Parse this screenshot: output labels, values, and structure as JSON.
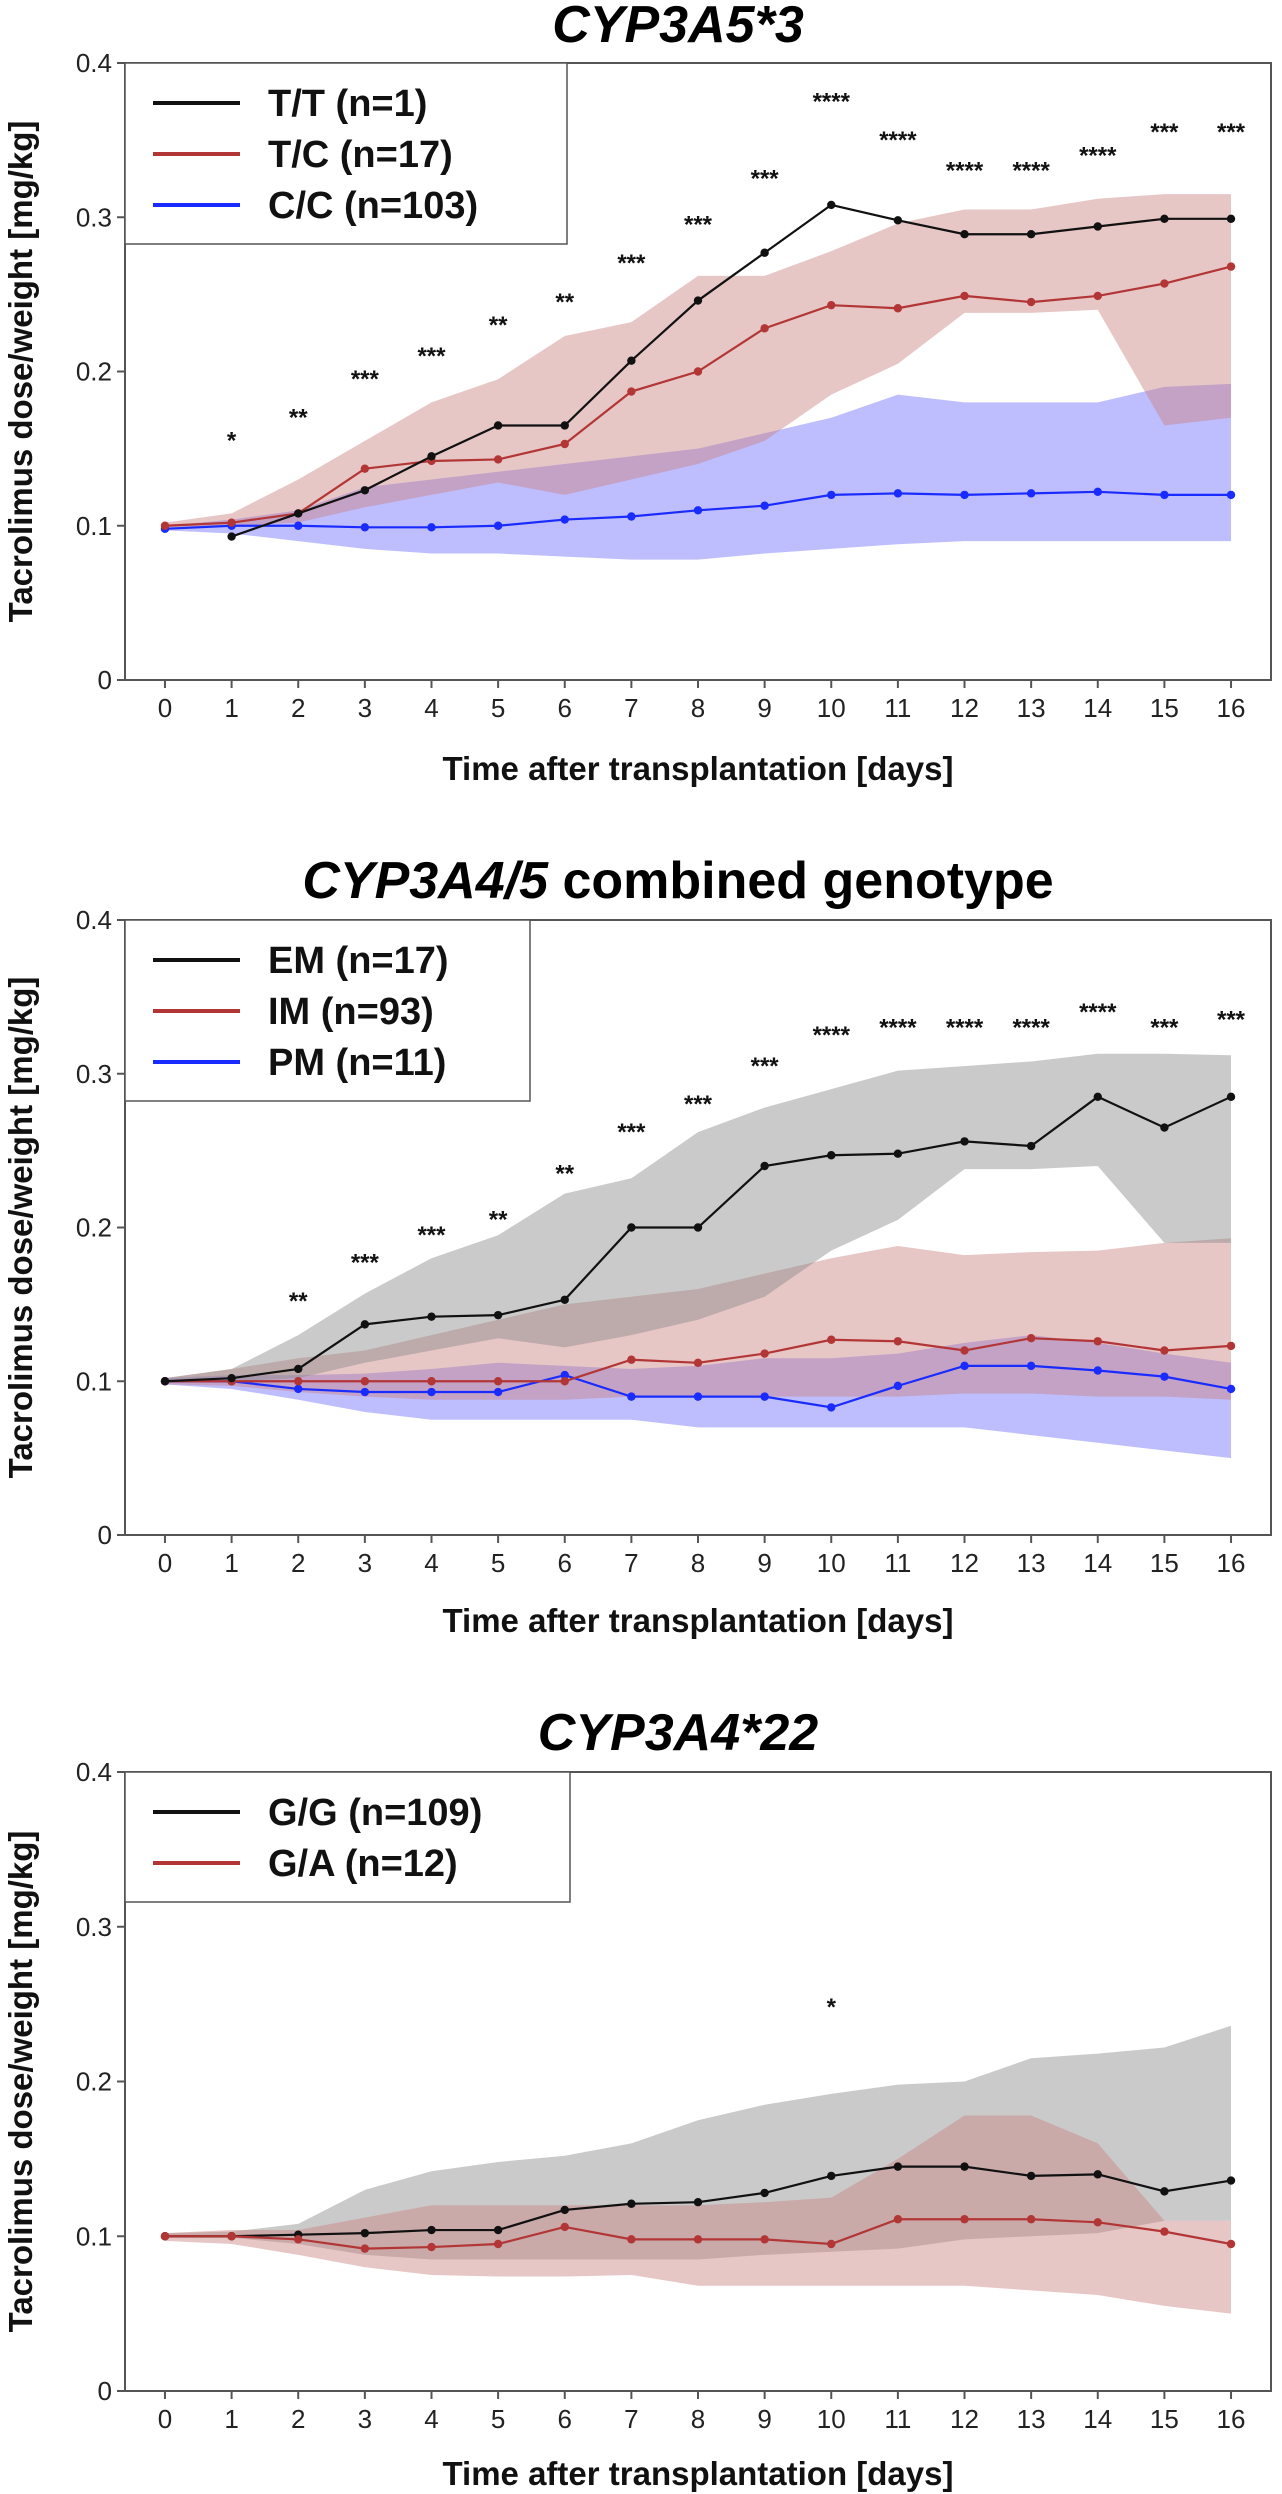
{
  "figure": {
    "colors": {
      "black": "#111111",
      "red": "#b23636",
      "blue": "#1a2bff",
      "black_band": "#8a8a8a",
      "red_band": "#c98080",
      "blue_band": "#6f6fff"
    }
  },
  "chart_data": [
    {
      "type": "line",
      "title_italic": "CYP3A5*3",
      "title_rest": "",
      "xlabel": "Time after transplantation [days]",
      "ylabel": "Tacrolimus dose/weight [mg/kg]",
      "x": [
        0,
        1,
        2,
        3,
        4,
        5,
        6,
        7,
        8,
        9,
        10,
        11,
        12,
        13,
        14,
        15,
        16
      ],
      "xlim": [
        -0.6,
        16.6
      ],
      "ylim": [
        0,
        0.4
      ],
      "yticks": [
        0,
        0.1,
        0.2,
        0.3,
        0.4
      ],
      "ytick_labels": [
        "0",
        "0.1",
        "0.2",
        "0.3",
        "0.4"
      ],
      "series": [
        {
          "name": "C/C",
          "legend": "C/C (n=103)",
          "color": "blue",
          "values": [
            0.098,
            0.1,
            0.1,
            0.099,
            0.099,
            0.1,
            0.104,
            0.106,
            0.11,
            0.113,
            0.12,
            0.121,
            0.12,
            0.121,
            0.122,
            0.12,
            0.12
          ],
          "band_low": [
            0.097,
            0.095,
            0.09,
            0.085,
            0.082,
            0.082,
            0.08,
            0.078,
            0.078,
            0.082,
            0.085,
            0.088,
            0.09,
            0.09,
            0.09,
            0.09,
            0.09
          ],
          "band_high": [
            0.1,
            0.104,
            0.11,
            0.125,
            0.13,
            0.135,
            0.14,
            0.145,
            0.15,
            0.16,
            0.17,
            0.185,
            0.18,
            0.18,
            0.18,
            0.19,
            0.192
          ]
        },
        {
          "name": "T/C",
          "legend": "T/C (n=17)",
          "color": "red",
          "values": [
            0.1,
            0.102,
            0.108,
            0.137,
            0.142,
            0.143,
            0.153,
            0.187,
            0.2,
            0.228,
            0.243,
            0.241,
            0.249,
            0.245,
            0.249,
            0.257,
            0.268
          ],
          "band_low": [
            0.099,
            0.1,
            0.102,
            0.112,
            0.12,
            0.128,
            0.12,
            0.13,
            0.14,
            0.155,
            0.185,
            0.205,
            0.238,
            0.238,
            0.24,
            0.165,
            0.17
          ],
          "band_high": [
            0.102,
            0.108,
            0.13,
            0.155,
            0.18,
            0.195,
            0.223,
            0.232,
            0.262,
            0.262,
            0.278,
            0.296,
            0.305,
            0.305,
            0.312,
            0.315,
            0.315
          ]
        },
        {
          "name": "T/T",
          "legend": "T/T (n=1)",
          "color": "black",
          "values": [
            null,
            0.093,
            0.108,
            0.123,
            0.145,
            0.165,
            0.165,
            0.207,
            0.246,
            0.277,
            0.308,
            0.298,
            0.289,
            0.289,
            0.294,
            0.299,
            0.299
          ],
          "band_low": null,
          "band_high": null
        }
      ],
      "legend_order": [
        "T/T (n=1)",
        "T/C (n=17)",
        "C/C (n=103)"
      ],
      "significance": [
        {
          "x": 1,
          "label": "*",
          "y": 0.15
        },
        {
          "x": 2,
          "label": "**",
          "y": 0.165
        },
        {
          "x": 3,
          "label": "***",
          "y": 0.19
        },
        {
          "x": 4,
          "label": "***",
          "y": 0.205
        },
        {
          "x": 5,
          "label": "**",
          "y": 0.225
        },
        {
          "x": 6,
          "label": "**",
          "y": 0.24
        },
        {
          "x": 7,
          "label": "***",
          "y": 0.265
        },
        {
          "x": 8,
          "label": "***",
          "y": 0.29
        },
        {
          "x": 9,
          "label": "***",
          "y": 0.32
        },
        {
          "x": 10,
          "label": "****",
          "y": 0.37
        },
        {
          "x": 11,
          "label": "****",
          "y": 0.345
        },
        {
          "x": 12,
          "label": "****",
          "y": 0.325
        },
        {
          "x": 13,
          "label": "****",
          "y": 0.325
        },
        {
          "x": 14,
          "label": "****",
          "y": 0.335
        },
        {
          "x": 15,
          "label": "***",
          "y": 0.35
        },
        {
          "x": 16,
          "label": "***",
          "y": 0.35
        }
      ]
    },
    {
      "type": "line",
      "title_italic": "CYP3A4/5",
      "title_rest": " combined genotype",
      "xlabel": "Time after transplantation [days]",
      "ylabel": "Tacrolimus dose/weight [mg/kg]",
      "x": [
        0,
        1,
        2,
        3,
        4,
        5,
        6,
        7,
        8,
        9,
        10,
        11,
        12,
        13,
        14,
        15,
        16
      ],
      "xlim": [
        -0.6,
        16.6
      ],
      "ylim": [
        0,
        0.4
      ],
      "yticks": [
        0,
        0.1,
        0.2,
        0.3,
        0.4
      ],
      "ytick_labels": [
        "0",
        "0.1",
        "0.2",
        "0.3",
        "0.4"
      ],
      "series": [
        {
          "name": "PM",
          "legend": "PM (n=11)",
          "color": "blue",
          "values": [
            0.1,
            0.1,
            0.095,
            0.093,
            0.093,
            0.093,
            0.104,
            0.09,
            0.09,
            0.09,
            0.083,
            0.097,
            0.11,
            0.11,
            0.107,
            0.103,
            0.095
          ],
          "band_low": [
            0.098,
            0.095,
            0.088,
            0.08,
            0.075,
            0.075,
            0.075,
            0.075,
            0.07,
            0.07,
            0.07,
            0.07,
            0.07,
            0.065,
            0.06,
            0.055,
            0.05
          ],
          "band_high": [
            0.102,
            0.104,
            0.104,
            0.105,
            0.108,
            0.112,
            0.11,
            0.108,
            0.11,
            0.115,
            0.115,
            0.118,
            0.125,
            0.13,
            0.125,
            0.118,
            0.112
          ]
        },
        {
          "name": "IM",
          "legend": "IM (n=93)",
          "color": "red",
          "values": [
            0.1,
            0.1,
            0.1,
            0.1,
            0.1,
            0.1,
            0.1,
            0.114,
            0.112,
            0.118,
            0.127,
            0.126,
            0.12,
            0.128,
            0.126,
            0.12,
            0.123
          ],
          "band_low": [
            0.098,
            0.097,
            0.093,
            0.09,
            0.088,
            0.088,
            0.088,
            0.09,
            0.09,
            0.09,
            0.09,
            0.09,
            0.092,
            0.092,
            0.09,
            0.09,
            0.088
          ],
          "band_high": [
            0.102,
            0.108,
            0.115,
            0.12,
            0.13,
            0.14,
            0.15,
            0.155,
            0.16,
            0.17,
            0.18,
            0.188,
            0.182,
            0.184,
            0.185,
            0.19,
            0.193
          ]
        },
        {
          "name": "EM",
          "legend": "EM (n=17)",
          "color": "black",
          "values": [
            0.1,
            0.102,
            0.108,
            0.137,
            0.142,
            0.143,
            0.153,
            0.2,
            0.2,
            0.24,
            0.247,
            0.248,
            0.256,
            0.253,
            0.285,
            0.265,
            0.285
          ],
          "band_low": [
            0.099,
            0.1,
            0.102,
            0.112,
            0.12,
            0.128,
            0.122,
            0.13,
            0.14,
            0.155,
            0.185,
            0.205,
            0.238,
            0.238,
            0.24,
            0.19,
            0.19
          ],
          "band_high": [
            0.102,
            0.108,
            0.13,
            0.157,
            0.18,
            0.195,
            0.222,
            0.232,
            0.262,
            0.278,
            0.29,
            0.302,
            0.305,
            0.308,
            0.313,
            0.313,
            0.312
          ]
        }
      ],
      "legend_order": [
        "EM (n=17)",
        "IM (n=93)",
        "PM (n=11)"
      ],
      "significance": [
        {
          "x": 2,
          "label": "**",
          "y": 0.147
        },
        {
          "x": 3,
          "label": "***",
          "y": 0.172
        },
        {
          "x": 4,
          "label": "***",
          "y": 0.19
        },
        {
          "x": 5,
          "label": "**",
          "y": 0.2
        },
        {
          "x": 6,
          "label": "**",
          "y": 0.23
        },
        {
          "x": 7,
          "label": "***",
          "y": 0.257
        },
        {
          "x": 8,
          "label": "***",
          "y": 0.275
        },
        {
          "x": 9,
          "label": "***",
          "y": 0.3
        },
        {
          "x": 10,
          "label": "****",
          "y": 0.32
        },
        {
          "x": 11,
          "label": "****",
          "y": 0.325
        },
        {
          "x": 12,
          "label": "****",
          "y": 0.325
        },
        {
          "x": 13,
          "label": "****",
          "y": 0.325
        },
        {
          "x": 14,
          "label": "****",
          "y": 0.335
        },
        {
          "x": 15,
          "label": "***",
          "y": 0.325
        },
        {
          "x": 16,
          "label": "***",
          "y": 0.33
        }
      ]
    },
    {
      "type": "line",
      "title_italic": "CYP3A4*22",
      "title_rest": "",
      "xlabel": "Time after transplantation [days]",
      "ylabel": "Tacrolimus dose/weight [mg/kg]",
      "x": [
        0,
        1,
        2,
        3,
        4,
        5,
        6,
        7,
        8,
        9,
        10,
        11,
        12,
        13,
        14,
        15,
        16
      ],
      "xlim": [
        -0.6,
        16.6
      ],
      "ylim": [
        0,
        0.4
      ],
      "yticks": [
        0,
        0.1,
        0.2,
        0.3,
        0.4
      ],
      "ytick_labels": [
        "0",
        "0.1",
        "0.2",
        "0.3",
        "0.4"
      ],
      "series": [
        {
          "name": "G/G",
          "legend": "G/G (n=109)",
          "color": "black",
          "values": [
            0.1,
            0.1,
            0.101,
            0.102,
            0.104,
            0.104,
            0.117,
            0.121,
            0.122,
            0.128,
            0.139,
            0.145,
            0.145,
            0.139,
            0.14,
            0.129,
            0.136
          ],
          "band_low": [
            0.099,
            0.099,
            0.095,
            0.088,
            0.085,
            0.085,
            0.085,
            0.085,
            0.085,
            0.088,
            0.09,
            0.092,
            0.098,
            0.1,
            0.102,
            0.11,
            0.11
          ],
          "band_high": [
            0.102,
            0.103,
            0.108,
            0.13,
            0.142,
            0.148,
            0.152,
            0.16,
            0.175,
            0.185,
            0.192,
            0.198,
            0.2,
            0.215,
            0.218,
            0.222,
            0.236
          ]
        },
        {
          "name": "G/A",
          "legend": "G/A (n=12)",
          "color": "red",
          "values": [
            0.1,
            0.1,
            0.098,
            0.092,
            0.093,
            0.095,
            0.106,
            0.098,
            0.098,
            0.098,
            0.095,
            0.111,
            0.111,
            0.111,
            0.109,
            0.103,
            0.095
          ],
          "band_low": [
            0.097,
            0.095,
            0.088,
            0.08,
            0.075,
            0.074,
            0.074,
            0.075,
            0.068,
            0.068,
            0.068,
            0.068,
            0.068,
            0.065,
            0.062,
            0.055,
            0.05
          ],
          "band_high": [
            0.102,
            0.104,
            0.104,
            0.112,
            0.12,
            0.12,
            0.12,
            0.12,
            0.12,
            0.122,
            0.125,
            0.15,
            0.178,
            0.178,
            0.16,
            0.11,
            0.11
          ]
        }
      ],
      "legend_order": [
        "G/G (n=109)",
        "G/A (n=12)"
      ],
      "significance": [
        {
          "x": 10,
          "label": "*",
          "y": 0.243
        }
      ]
    }
  ]
}
